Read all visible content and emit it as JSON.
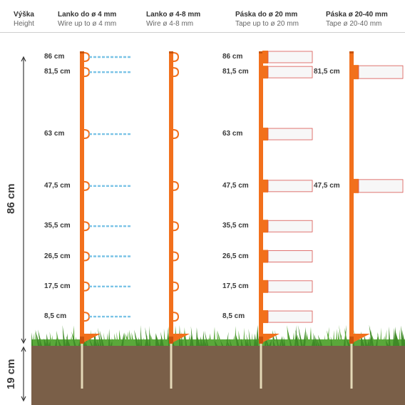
{
  "header": {
    "height_title": "Výška",
    "height_subtitle": "Height",
    "columns": [
      {
        "title": "Lanko do ø 4 mm",
        "subtitle": "Wire up to ø 4 mm"
      },
      {
        "title": "Lanko ø 4-8 mm",
        "subtitle": "Wire ø 4-8 mm"
      },
      {
        "title": "Páska do ø 20 mm",
        "subtitle": "Tape up to ø 20 mm"
      },
      {
        "title": "Páska  ø 20-40 mm",
        "subtitle": "Tape ø 20-40 mm"
      }
    ]
  },
  "axis": {
    "above_ground_label": "86 cm",
    "below_ground_label": "19 cm",
    "above_ground_cm": 86,
    "below_ground_cm": 19
  },
  "heights_cm": [
    86,
    81.5,
    63,
    47.5,
    35.5,
    26.5,
    17.5,
    8.5
  ],
  "wire_labels": [
    "86 cm",
    "81,5 cm",
    "63 cm",
    "47,5 cm",
    "35,5 cm",
    "26,5 cm",
    "17,5 cm",
    "8,5 cm"
  ],
  "tape_labels": [
    "86 cm",
    "81,5 cm",
    "63 cm",
    "47,5 cm",
    "35,5 cm",
    "26,5 cm",
    "17,5 cm",
    "8,5 cm"
  ],
  "wide_tape": {
    "heights_cm": [
      81.5,
      47.5
    ],
    "labels": [
      "81,5 cm",
      "47,5 cm"
    ]
  },
  "colors": {
    "post": "#f2701c",
    "post_dark": "#c8540e",
    "soil": "#7a5f48",
    "grass": "#5aa83a",
    "grass_dark": "#3f8a27",
    "spike": "#e4d9b8",
    "wire_blue": "#7cc4e6",
    "tape_edge": "#d9534f",
    "tape_fill": "#f7f7f7",
    "text": "#3a3a3a"
  }
}
